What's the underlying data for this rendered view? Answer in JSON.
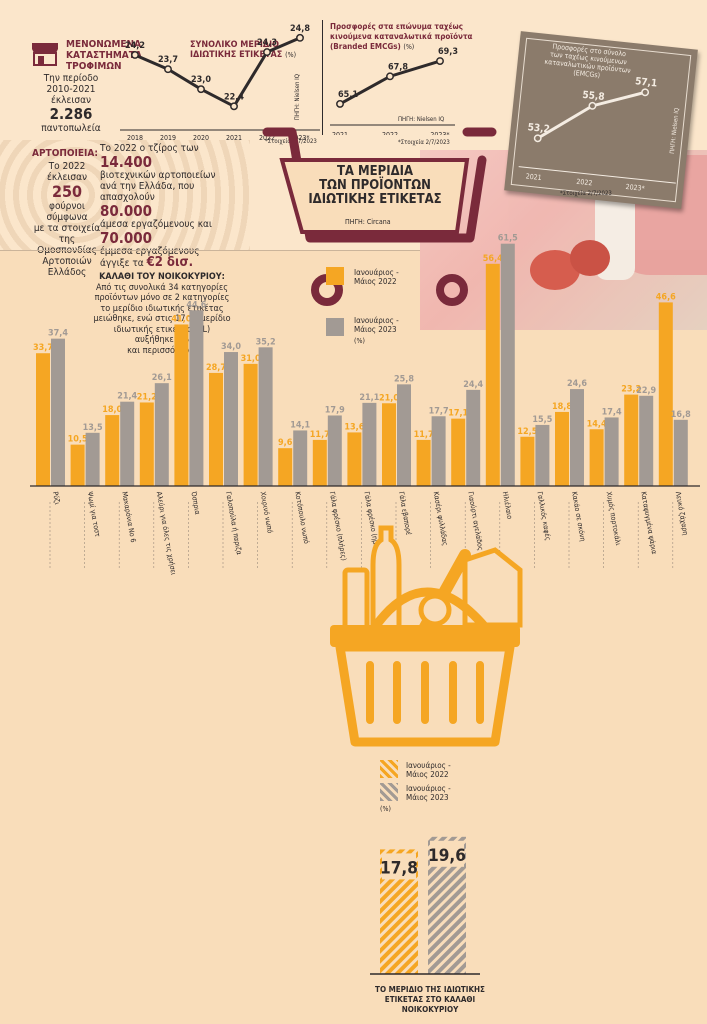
{
  "colors": {
    "bg": "#f9ddba",
    "orange": "#f5a623",
    "gray": "#a29a94",
    "maroon": "#7a2a3b",
    "dark": "#2e2a2b"
  },
  "icons": {
    "shop": "storefront-icon",
    "cart": "shopping-cart-icon",
    "basket": "grocery-basket-icon"
  },
  "top_left": {
    "title1": "ΜΕΝΟΝΩΜΕΝΑ",
    "title2": "ΚΑΤΑΣΤΗΜΑΤΑ",
    "title3": "ΤΡΟΦΙΜΩΝ",
    "line1": "Την περίοδο",
    "line2": "2010-2021 έκλεισαν",
    "number": "2.286",
    "line3": "παντοπωλεία"
  },
  "bakeries": {
    "heading": "ΑΡΤΟΠΟΙΕΙΑ:",
    "l1": "Το 2022 έκλεισαν",
    "number": "250",
    "l2": "φούρνοι σύμφωνα",
    "l3": "με τα στοιχεία",
    "l4": "της Ομοσπονδίας",
    "l5": "Αρτοποιών Ελλάδος"
  },
  "turnover": {
    "l1": "Το 2022 ο τζίρος των",
    "n1": "14.400",
    "l2": "βιοτεχνικών αρτοποιείων",
    "l3": "ανά την Ελλάδα, που απασχολούν",
    "n2": "80.000",
    "l4": "άμεσα εργαζόμενους και",
    "n3": "70.000",
    "l5": "έμμεσα εργαζόμενους",
    "l6": "άγγιξε τα",
    "n4": "€2 δισ."
  },
  "cart": {
    "title1": "ΤΑ ΜΕΡΙΔΙΑ",
    "title2": "ΤΩΝ ΠΡΟΪΟΝΤΩΝ",
    "title3": "ΙΔΙΩΤΙΚΗΣ ΕΤΙΚΕΤΑΣ",
    "source": "ΠΗΓΗ: Circana"
  },
  "legend": {
    "s1a": "Ιανουάριος -",
    "s1b": "Μάιος 2022",
    "s2a": "Ιανουάριος -",
    "s2b": "Μάιος 2023",
    "unit": "(%)"
  },
  "household": {
    "heading": "ΚΑΛΑΘΙ ΤΟΥ ΝΟΙΚΟΚΥΡΙΟΥ:",
    "l1": "Από τις συνολικά 34 κατηγορίες",
    "l2": "προϊόντων μόνο σε 2 κατηγορίες",
    "l3": "το μερίδιο ιδιωτικής ετικέτας",
    "l4": "μειώθηκε, ενώ στις 17 το μερίδιο",
    "l5": "ιδιωτικής ετικέτας (PL)",
    "l6": "αυξήθηκε 3%",
    "l7": "και περισσότερο."
  },
  "total": {
    "caption1": "ΤΟ ΜΕΡΙΔΙΟ ΤΗΣ ΙΔΙΩΤΙΚΗΣ",
    "caption2": "ΕΤΙΚΕΤΑΣ ΣΤΟ ΚΑΛΑΘΙ ΝΟΙΚΟΚΥΡΙΟΥ"
  },
  "chart_data": [
    {
      "type": "line",
      "title": "ΣΥΝΟΛΙΚΟ ΜΕΡΙΔΙΟ ΙΔΙΩΤΙΚΗΣ ΕΤΙΚΕΤΑΣ",
      "unit": "(%)",
      "x": [
        "2018",
        "2019",
        "2020",
        "2021",
        "2022",
        "2023*"
      ],
      "values": [
        24.2,
        23.7,
        23.0,
        22.4,
        24.3,
        24.8
      ],
      "labels": [
        "24,2",
        "23,7",
        "23,0",
        "22,4",
        "24,3",
        "24,8"
      ],
      "source": "ΠΗΓΗ: Nielsen IQ",
      "note": "*Στοιχεία 2/7/2023"
    },
    {
      "type": "line",
      "title": "Προσφορές στα επώνυμα ταχέως κινούμενα καταναλωτικά προϊόντα (Branded EMCGs)",
      "title1": "Προσφορές στα επώνυμα ταχέως",
      "title2": "κινούμενα καταναλωτικά προϊόντα",
      "title3": "(Branded EMCGs)",
      "unit": "(%)",
      "x": [
        "2021",
        "2022",
        "2023*"
      ],
      "values": [
        65.1,
        67.8,
        69.3
      ],
      "labels": [
        "65,1",
        "67,8",
        "69,3"
      ],
      "source": "ΠΗΓΗ: Nielsen IQ",
      "note": "*Στοιχεία 2/7/2023"
    },
    {
      "type": "line",
      "title": "Προσφορές στο σύνολο των ταχέως κινούμενων καταναλωτικών προϊόντων (EMCGs)",
      "title1": "Προσφορές στο σύνολο",
      "title2": "των ταχέως κινούμενων",
      "title3": "καταναλωτικών προϊόντων",
      "title4": "(EMCGs)",
      "x": [
        "2021",
        "2022",
        "2023*"
      ],
      "values": [
        53.2,
        55.8,
        57.1
      ],
      "labels": [
        "53,2",
        "55,8",
        "57,1"
      ],
      "source": "ΠΗΓΗ: Nielsen IQ",
      "note": "*Στοιχεία 2/7/2023"
    },
    {
      "type": "bar",
      "title": "ΤΑ ΜΕΡΙΔΙΑ ΤΩΝ ΠΡΟΪΟΝΤΩΝ ΙΔΙΩΤΙΚΗΣ ΕΤΙΚΕΤΑΣ",
      "unit": "(%)",
      "categories": [
        "Ρύζι",
        "Ψωμί για τοστ",
        "Μακαρόνια Νο 6",
        "Αλεύρι για όλες τις χρήσεις",
        "Όσπρια",
        "Γαλοπούλα ή παριζα",
        "Χοιρινό νωπό",
        "Κοτόπουλο νωπό",
        "Γάλα φρέσκο (πλήρες)",
        "Γάλα φρέσκο (ημ. λιπαρό)",
        "Γάλα εβαπορέ",
        "Κασέρι φυλλάδας",
        "Γιαούρτι αγελάδος (ημ. λιπαρό)",
        "Ηλιέλαιο",
        "Γαλλικός καφές",
        "Κακάο σε σκόνη",
        "Χυμός πορτοκάλι",
        "Καταψυγμένα ψάρια",
        "Λευκό ζάχαρη"
      ],
      "series": [
        {
          "name": "Ιανουάριος - Μάιος 2022",
          "values": [
            33.7,
            10.5,
            18.0,
            21.2,
            41.0,
            28.7,
            31.0,
            9.6,
            11.7,
            13.6,
            21.0,
            11.7,
            17.1,
            56.4,
            12.5,
            18.8,
            14.4,
            23.2,
            46.6
          ],
          "labels": [
            "33,7",
            "10,5",
            "18,0",
            "21,2",
            "41,0",
            "28,7",
            "31,0",
            "9,6",
            "11,7",
            "13,6",
            "21,0",
            "11,7",
            "17,1",
            "56,4",
            "12,5",
            "18,8",
            "14,4",
            "23,2",
            "46,6"
          ]
        },
        {
          "name": "Ιανουάριος - Μάιος 2023",
          "values": [
            37.4,
            13.5,
            21.4,
            26.1,
            44.6,
            34.0,
            35.2,
            14.1,
            17.9,
            21.1,
            25.8,
            17.7,
            24.4,
            61.5,
            15.5,
            24.6,
            17.4,
            22.9,
            16.8
          ],
          "labels": [
            "37,4",
            "13,5",
            "21,4",
            "26,1",
            "44,6",
            "34,0",
            "35,2",
            "14,1",
            "17,9",
            "21,1",
            "25,8",
            "17,7",
            "24,4",
            "61,5",
            "15,5",
            "24,6",
            "17,4",
            "22,9",
            "16,8"
          ]
        }
      ]
    },
    {
      "type": "bar",
      "title": "ΤΟ ΜΕΡΙΔΙΟ ΤΗΣ ΙΔΙΩΤΙΚΗΣ ΕΤΙΚΕΤΑΣ ΣΤΟ ΚΑΛΑΘΙ ΝΟΙΚΟΚΥΡΙΟΥ",
      "unit": "(%)",
      "series": [
        {
          "name": "Ιανουάριος - Μάιος 2022",
          "value": 17.8,
          "label": "17,8"
        },
        {
          "name": "Ιανουάριος - Μάιος 2023",
          "value": 19.6,
          "label": "19,6"
        }
      ]
    }
  ]
}
